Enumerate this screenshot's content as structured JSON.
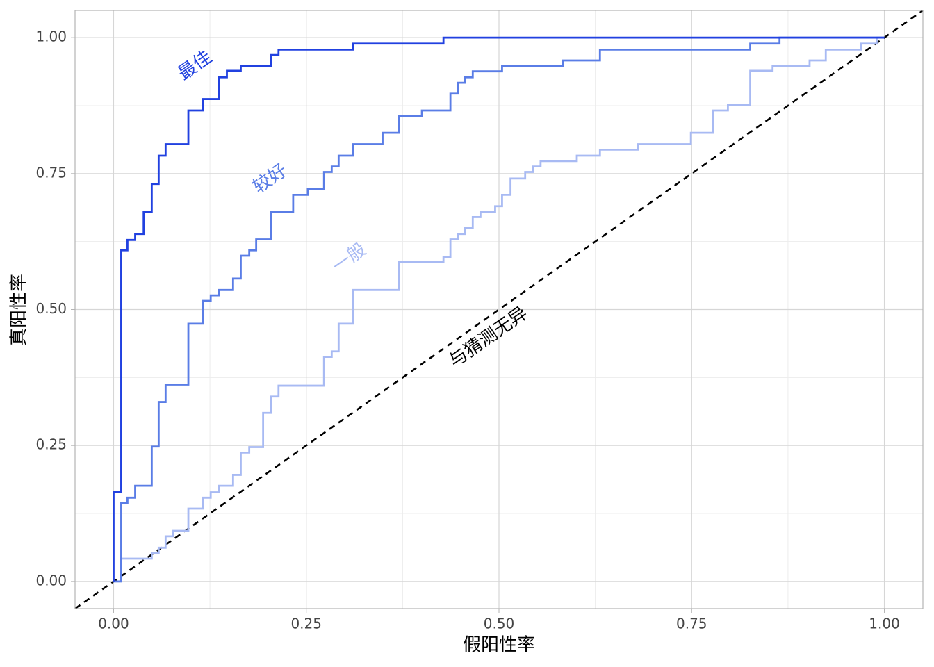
{
  "chart_data": {
    "type": "line",
    "xlabel": "假阳性率",
    "ylabel": "真阳性率",
    "xlim": [
      -0.05,
      1.05
    ],
    "ylim": [
      -0.05,
      1.05
    ],
    "xticks": [
      {
        "value": 0,
        "label": "0.00"
      },
      {
        "value": 0.25,
        "label": "0.25"
      },
      {
        "value": 0.5,
        "label": "0.50"
      },
      {
        "value": 0.75,
        "label": "0.75"
      },
      {
        "value": 1,
        "label": "1.00"
      }
    ],
    "yticks": [
      {
        "value": 0,
        "label": "0.00"
      },
      {
        "value": 0.25,
        "label": "0.25"
      },
      {
        "value": 0.5,
        "label": "0.50"
      },
      {
        "value": 0.75,
        "label": "0.75"
      },
      {
        "value": 1,
        "label": "1.00"
      }
    ],
    "xminor": [
      0.125,
      0.375,
      0.625,
      0.875
    ],
    "yminor": [
      0.125,
      0.375,
      0.625,
      0.875
    ],
    "grid": true,
    "series": [
      {
        "name": "最佳",
        "color": "#2141e0",
        "x": [
          0,
          0,
          0.0099,
          0.0099,
          0.018,
          0.018,
          0.028,
          0.028,
          0.039,
          0.039,
          0.0495,
          0.0495,
          0.0585,
          0.0585,
          0.0675,
          0.0675,
          0.097,
          0.097,
          0.116,
          0.116,
          0.137,
          0.137,
          0.147,
          0.147,
          0.165,
          0.165,
          0.204,
          0.204,
          0.214,
          0.214,
          0.311,
          0.311,
          0.428,
          0.428,
          1
        ],
        "values": [
          0,
          0.165,
          0.165,
          0.609,
          0.609,
          0.628,
          0.628,
          0.639,
          0.639,
          0.68,
          0.68,
          0.731,
          0.731,
          0.783,
          0.783,
          0.804,
          0.804,
          0.866,
          0.866,
          0.887,
          0.887,
          0.927,
          0.927,
          0.939,
          0.939,
          0.948,
          0.948,
          0.968,
          0.968,
          0.978,
          0.978,
          0.989,
          0.989,
          1,
          1
        ]
      },
      {
        "name": "较好",
        "color": "#5a7de6",
        "x": [
          0,
          0.0099,
          0.0099,
          0.018,
          0.018,
          0.028,
          0.028,
          0.0495,
          0.0495,
          0.0585,
          0.0585,
          0.0675,
          0.0675,
          0.097,
          0.097,
          0.116,
          0.116,
          0.126,
          0.126,
          0.137,
          0.137,
          0.155,
          0.155,
          0.165,
          0.165,
          0.176,
          0.176,
          0.185,
          0.185,
          0.204,
          0.204,
          0.233,
          0.233,
          0.252,
          0.252,
          0.273,
          0.273,
          0.283,
          0.283,
          0.292,
          0.292,
          0.311,
          0.311,
          0.349,
          0.349,
          0.37,
          0.37,
          0.4,
          0.4,
          0.437,
          0.437,
          0.447,
          0.447,
          0.456,
          0.456,
          0.466,
          0.466,
          0.504,
          0.504,
          0.583,
          0.583,
          0.631,
          0.631,
          0.826,
          0.826,
          0.864,
          0.864,
          1
        ],
        "values": [
          0,
          0,
          0.144,
          0.144,
          0.154,
          0.154,
          0.176,
          0.176,
          0.248,
          0.248,
          0.33,
          0.33,
          0.362,
          0.362,
          0.474,
          0.474,
          0.516,
          0.516,
          0.526,
          0.526,
          0.536,
          0.536,
          0.557,
          0.557,
          0.599,
          0.599,
          0.609,
          0.609,
          0.629,
          0.629,
          0.68,
          0.68,
          0.711,
          0.711,
          0.722,
          0.722,
          0.753,
          0.753,
          0.763,
          0.763,
          0.783,
          0.783,
          0.804,
          0.804,
          0.825,
          0.825,
          0.856,
          0.856,
          0.866,
          0.866,
          0.897,
          0.897,
          0.917,
          0.917,
          0.927,
          0.927,
          0.938,
          0.938,
          0.948,
          0.948,
          0.958,
          0.958,
          0.978,
          0.978,
          0.989,
          0.989,
          1,
          1
        ]
      },
      {
        "name": "一般",
        "color": "#a8baf3",
        "x": [
          0,
          0.0099,
          0.0099,
          0.0495,
          0.0495,
          0.0585,
          0.0585,
          0.0675,
          0.0675,
          0.077,
          0.077,
          0.097,
          0.097,
          0.116,
          0.116,
          0.126,
          0.126,
          0.137,
          0.137,
          0.155,
          0.155,
          0.165,
          0.165,
          0.176,
          0.176,
          0.194,
          0.194,
          0.204,
          0.204,
          0.214,
          0.214,
          0.273,
          0.273,
          0.283,
          0.283,
          0.292,
          0.292,
          0.311,
          0.311,
          0.37,
          0.37,
          0.428,
          0.428,
          0.437,
          0.437,
          0.447,
          0.447,
          0.456,
          0.456,
          0.466,
          0.466,
          0.476,
          0.476,
          0.495,
          0.495,
          0.504,
          0.504,
          0.515,
          0.515,
          0.534,
          0.534,
          0.544,
          0.544,
          0.554,
          0.554,
          0.601,
          0.601,
          0.631,
          0.631,
          0.68,
          0.68,
          0.749,
          0.749,
          0.778,
          0.778,
          0.797,
          0.797,
          0.826,
          0.826,
          0.855,
          0.855,
          0.903,
          0.903,
          0.924,
          0.924,
          0.97,
          0.97,
          0.99,
          0.99,
          1
        ],
        "values": [
          0,
          0,
          0.042,
          0.042,
          0.052,
          0.052,
          0.062,
          0.062,
          0.083,
          0.083,
          0.093,
          0.093,
          0.134,
          0.134,
          0.154,
          0.154,
          0.164,
          0.164,
          0.176,
          0.176,
          0.196,
          0.196,
          0.237,
          0.237,
          0.247,
          0.247,
          0.31,
          0.31,
          0.34,
          0.34,
          0.36,
          0.36,
          0.413,
          0.413,
          0.423,
          0.423,
          0.474,
          0.474,
          0.536,
          0.536,
          0.587,
          0.587,
          0.597,
          0.597,
          0.629,
          0.629,
          0.639,
          0.639,
          0.65,
          0.65,
          0.67,
          0.67,
          0.68,
          0.68,
          0.69,
          0.69,
          0.711,
          0.711,
          0.741,
          0.741,
          0.753,
          0.753,
          0.763,
          0.763,
          0.773,
          0.773,
          0.783,
          0.783,
          0.794,
          0.794,
          0.804,
          0.804,
          0.825,
          0.825,
          0.866,
          0.866,
          0.876,
          0.876,
          0.939,
          0.939,
          0.948,
          0.948,
          0.958,
          0.958,
          0.978,
          0.978,
          0.989,
          0.989,
          1,
          1
        ]
      },
      {
        "name": "与猜测无异",
        "color": "#000000",
        "dashed": true,
        "x": [
          -0.05,
          1.05
        ],
        "values": [
          -0.05,
          1.05
        ]
      }
    ]
  }
}
